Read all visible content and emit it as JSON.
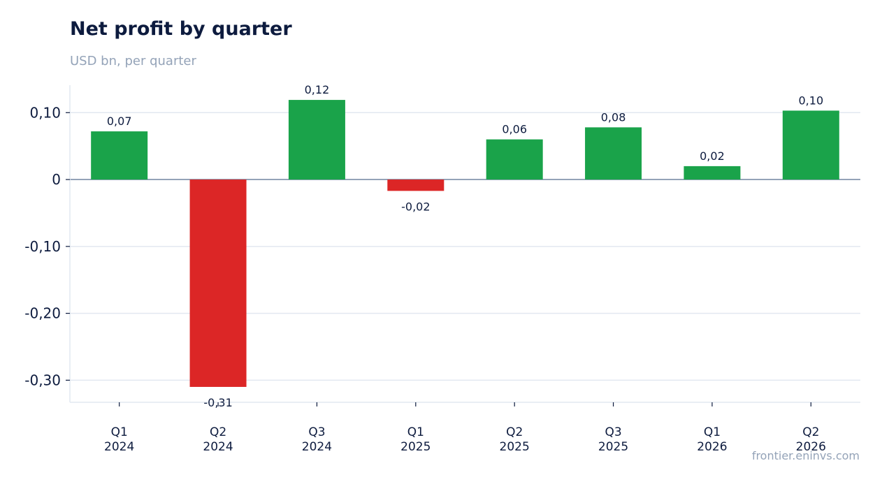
{
  "header": {
    "title": "Net profit by quarter",
    "subtitle": "USD bn, per quarter"
  },
  "footer": {
    "source": "frontier.eninvs.com"
  },
  "colors": {
    "positive": "#1aa34a",
    "negative": "#dc2626",
    "grid": "#e2e8f0",
    "zero_line": "#94a3b8",
    "text": "#0d1b3e"
  },
  "chart_data": {
    "type": "bar",
    "title": "Net profit by quarter",
    "subtitle": "USD bn, per quarter",
    "categories": [
      [
        "Q1",
        "2024"
      ],
      [
        "Q2",
        "2024"
      ],
      [
        "Q3",
        "2024"
      ],
      [
        "Q1",
        "2025"
      ],
      [
        "Q2",
        "2025"
      ],
      [
        "Q3",
        "2025"
      ],
      [
        "Q1",
        "2026"
      ],
      [
        "Q2",
        "2026"
      ]
    ],
    "values": [
      0.072,
      -0.31,
      0.119,
      -0.017,
      0.06,
      0.078,
      0.02,
      0.103
    ],
    "data_labels": [
      "0,07",
      "-0,31",
      "0,12",
      "-0,02",
      "0,06",
      "0,08",
      "0,02",
      "0,10"
    ],
    "y_ticks": [
      0.1,
      0,
      -0.1,
      -0.2,
      -0.3
    ],
    "y_tick_labels": [
      "0,10",
      "0",
      "-0,10",
      "-0,20",
      "-0,30"
    ],
    "ylim": [
      -0.333,
      0.141
    ],
    "grid": true,
    "legend": "none"
  }
}
